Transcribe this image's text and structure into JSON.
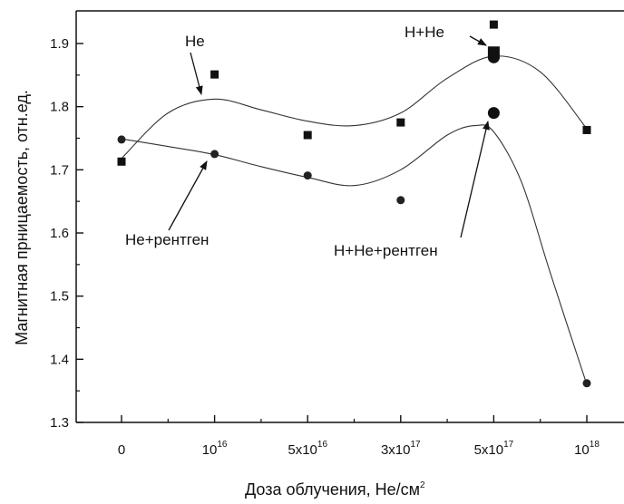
{
  "chart_data": {
    "type": "scatter",
    "title": "",
    "xlabel": "Доза облучения, He/см",
    "xlabel_sup": "2",
    "ylabel": "Магнитная прницаемость, отн.ед.",
    "ylim": [
      1.3,
      1.95
    ],
    "yticks": [
      1.3,
      1.4,
      1.5,
      1.6,
      1.7,
      1.8,
      1.9
    ],
    "ytick_labels": [
      "1.3",
      "1.4",
      "1.5",
      "1.6",
      "1.7",
      "1.8",
      "1.9"
    ],
    "xlim": [
      -0.5,
      5.5
    ],
    "x_categories": [
      {
        "pos": 0,
        "base": "0",
        "sup": ""
      },
      {
        "pos": 1,
        "base": "10",
        "sup": "16"
      },
      {
        "pos": 2,
        "base": "5x10",
        "sup": "16"
      },
      {
        "pos": 3,
        "base": "3x10",
        "sup": "17"
      },
      {
        "pos": 4,
        "base": "5x10",
        "sup": "17"
      },
      {
        "pos": 5,
        "base": "10",
        "sup": "18"
      }
    ],
    "grid": false,
    "series": [
      {
        "name": "He",
        "marker": "square",
        "points": [
          [
            0,
            1.713
          ],
          [
            1,
            1.851
          ],
          [
            2,
            1.755
          ],
          [
            3,
            1.775
          ],
          [
            4,
            1.93
          ],
          [
            5,
            1.763
          ]
        ],
        "curve": [
          [
            0,
            1.718
          ],
          [
            0.5,
            1.79
          ],
          [
            1,
            1.812
          ],
          [
            1.5,
            1.795
          ],
          [
            2,
            1.777
          ],
          [
            2.5,
            1.77
          ],
          [
            3,
            1.79
          ],
          [
            3.5,
            1.845
          ],
          [
            4,
            1.88
          ],
          [
            4.5,
            1.855
          ],
          [
            5,
            1.765
          ]
        ]
      },
      {
        "name": "He+рентген",
        "marker": "circle",
        "points": [
          [
            0,
            1.748
          ],
          [
            1,
            1.725
          ],
          [
            2,
            1.691
          ],
          [
            3,
            1.652
          ],
          [
            5,
            1.362
          ]
        ],
        "curve": [
          [
            0,
            1.749
          ],
          [
            0.5,
            1.737
          ],
          [
            1,
            1.724
          ],
          [
            1.5,
            1.705
          ],
          [
            2,
            1.688
          ],
          [
            2.5,
            1.675
          ],
          [
            3,
            1.7
          ],
          [
            3.5,
            1.755
          ],
          [
            3.8,
            1.77
          ],
          [
            4,
            1.76
          ],
          [
            4.3,
            1.68
          ],
          [
            4.6,
            1.54
          ],
          [
            5,
            1.36
          ]
        ]
      },
      {
        "name": "H+He",
        "marker": "square-large",
        "points": [
          [
            4,
            1.886
          ]
        ]
      },
      {
        "name": "H+He+рентген",
        "marker": "circle-large",
        "points": [
          [
            4,
            1.79
          ],
          [
            4,
            1.878
          ]
        ]
      }
    ],
    "annotations": [
      {
        "text": "He"
      },
      {
        "text": "H+He"
      },
      {
        "text": "He+рентген"
      },
      {
        "text": "H+He+рентген"
      }
    ]
  }
}
